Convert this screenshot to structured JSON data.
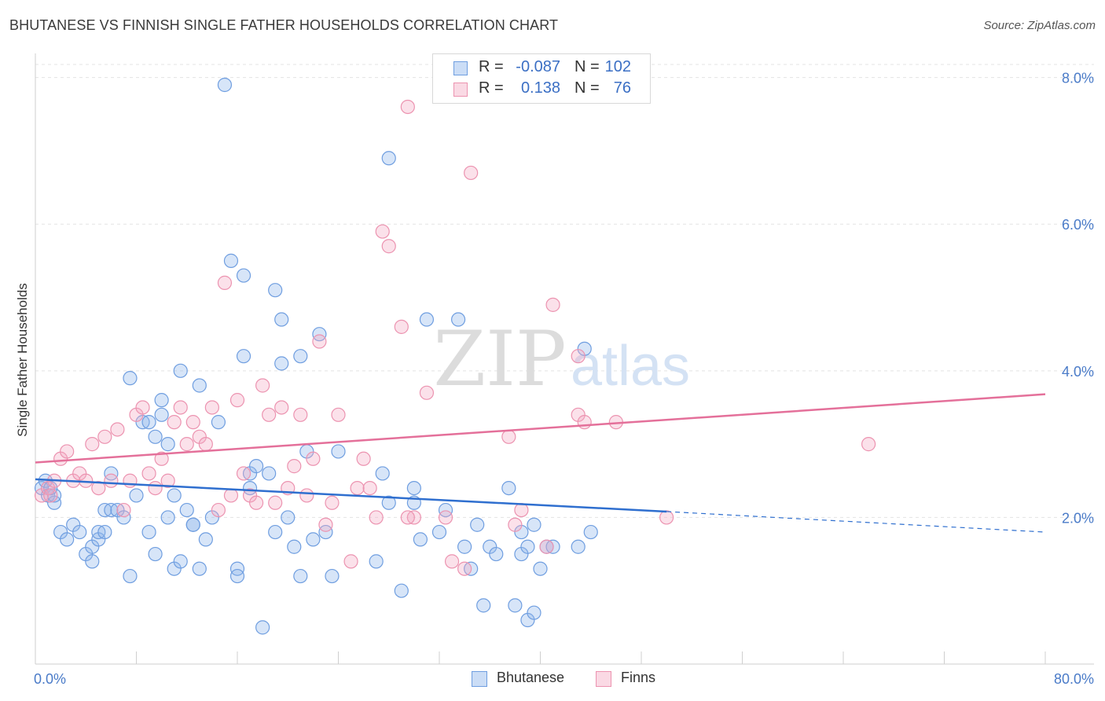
{
  "header": {
    "title": "BHUTANESE VS FINNISH SINGLE FATHER HOUSEHOLDS CORRELATION CHART",
    "source": "Source: ZipAtlas.com"
  },
  "watermark": {
    "zip": "ZIP",
    "atlas": "atlas"
  },
  "stats_legend": [
    {
      "label_r": "R =",
      "r": "-0.087",
      "label_n": "N =",
      "n": "102",
      "color": "#9bbcec"
    },
    {
      "label_r": "R =",
      "r": "0.138",
      "label_n": "N =",
      "n": "76",
      "color": "#f2a9c1"
    }
  ],
  "bottom_legend": [
    {
      "name": "Bhutanese",
      "color": "#9bbcec"
    },
    {
      "name": "Finns",
      "color": "#f2a9c1"
    }
  ],
  "colors": {
    "blue_fill": "rgba(140,180,235,0.35)",
    "blue_stroke": "#6f9ee0",
    "blue_line": "#2f6fcf",
    "pink_fill": "rgba(244,170,195,0.35)",
    "pink_stroke": "#ec93b0",
    "pink_line": "#e4709a",
    "tick_text": "#4a7bc8"
  },
  "chart_data": {
    "type": "scatter",
    "title": "BHUTANESE VS FINNISH SINGLE FATHER HOUSEHOLDS CORRELATION CHART",
    "xlabel": "",
    "ylabel": "Single Father Households",
    "xlim": [
      0,
      80
    ],
    "ylim": [
      0,
      8.2
    ],
    "x_tick_labels": [
      "0.0%",
      "80.0%"
    ],
    "y_ticks": [
      2,
      4,
      6,
      8
    ],
    "y_tick_labels": [
      "2.0%",
      "4.0%",
      "6.0%",
      "8.0%"
    ],
    "grid": true,
    "legend_position": "top-center",
    "series": [
      {
        "name": "Bhutanese",
        "trend": {
          "x": [
            0,
            50
          ],
          "y": [
            2.52,
            2.08
          ],
          "dashed_extension_to_x": 80,
          "dashed_end_y": 1.8
        },
        "points": [
          [
            0.5,
            2.4
          ],
          [
            1,
            2.3
          ],
          [
            1.5,
            2.2
          ],
          [
            1.5,
            2.3
          ],
          [
            2,
            1.8
          ],
          [
            2.5,
            1.7
          ],
          [
            3,
            1.9
          ],
          [
            3.5,
            1.8
          ],
          [
            4,
            1.5
          ],
          [
            4.5,
            1.6
          ],
          [
            4.5,
            1.4
          ],
          [
            5,
            1.7
          ],
          [
            5,
            1.8
          ],
          [
            5.5,
            2.1
          ],
          [
            5.5,
            1.8
          ],
          [
            6,
            2.6
          ],
          [
            6,
            2.1
          ],
          [
            6.5,
            2.1
          ],
          [
            7,
            2.0
          ],
          [
            7.5,
            3.9
          ],
          [
            7.5,
            1.2
          ],
          [
            8,
            2.3
          ],
          [
            8.5,
            3.3
          ],
          [
            9,
            3.3
          ],
          [
            9,
            1.8
          ],
          [
            9.5,
            3.1
          ],
          [
            9.5,
            1.5
          ],
          [
            10,
            3.6
          ],
          [
            10,
            3.4
          ],
          [
            10.5,
            2.0
          ],
          [
            10.5,
            3.0
          ],
          [
            11,
            2.3
          ],
          [
            11,
            1.3
          ],
          [
            11.5,
            1.4
          ],
          [
            11.5,
            4.0
          ],
          [
            12,
            2.1
          ],
          [
            12.5,
            1.9
          ],
          [
            12.5,
            1.9
          ],
          [
            13,
            3.8
          ],
          [
            13,
            1.3
          ],
          [
            13.5,
            1.7
          ],
          [
            14,
            2.0
          ],
          [
            14.5,
            3.3
          ],
          [
            15,
            7.9
          ],
          [
            15.5,
            5.5
          ],
          [
            16,
            1.3
          ],
          [
            16,
            1.2
          ],
          [
            16.5,
            4.2
          ],
          [
            16.5,
            5.3
          ],
          [
            17,
            2.6
          ],
          [
            17,
            2.4
          ],
          [
            17.5,
            2.7
          ],
          [
            18,
            0.5
          ],
          [
            18.5,
            2.6
          ],
          [
            19,
            5.1
          ],
          [
            19,
            1.8
          ],
          [
            19.5,
            4.7
          ],
          [
            19.5,
            4.1
          ],
          [
            20,
            2.0
          ],
          [
            20.5,
            1.6
          ],
          [
            21,
            4.2
          ],
          [
            21,
            1.2
          ],
          [
            21.5,
            2.9
          ],
          [
            22,
            1.7
          ],
          [
            22.5,
            4.5
          ],
          [
            23,
            1.8
          ],
          [
            23.5,
            1.2
          ],
          [
            24,
            2.9
          ],
          [
            27,
            1.4
          ],
          [
            27.5,
            2.6
          ],
          [
            28,
            6.9
          ],
          [
            28,
            2.2
          ],
          [
            29,
            1.0
          ],
          [
            30,
            2.4
          ],
          [
            30.5,
            1.7
          ],
          [
            31,
            4.7
          ],
          [
            32,
            1.8
          ],
          [
            32.5,
            2.1
          ],
          [
            33.5,
            4.7
          ],
          [
            34,
            1.6
          ],
          [
            34.5,
            1.3
          ],
          [
            35,
            1.9
          ],
          [
            35.5,
            0.8
          ],
          [
            36,
            1.6
          ],
          [
            36.5,
            1.5
          ],
          [
            37.5,
            2.4
          ],
          [
            38,
            0.8
          ],
          [
            38.5,
            1.5
          ],
          [
            38.5,
            1.8
          ],
          [
            39,
            1.6
          ],
          [
            39,
            0.6
          ],
          [
            39.5,
            0.7
          ],
          [
            39.5,
            1.9
          ],
          [
            40,
            1.3
          ],
          [
            40.5,
            1.6
          ],
          [
            41,
            1.6
          ],
          [
            43,
            1.6
          ],
          [
            43.5,
            4.3
          ],
          [
            44,
            1.8
          ],
          [
            30,
            2.2
          ],
          [
            0.8,
            2.5
          ],
          [
            1.2,
            2.4
          ]
        ]
      },
      {
        "name": "Finns",
        "trend": {
          "x": [
            0,
            80
          ],
          "y": [
            2.75,
            3.68
          ]
        },
        "points": [
          [
            0.5,
            2.3
          ],
          [
            1,
            2.4
          ],
          [
            1.5,
            2.5
          ],
          [
            2,
            2.8
          ],
          [
            2.5,
            2.9
          ],
          [
            3,
            2.5
          ],
          [
            3.5,
            2.6
          ],
          [
            4,
            2.5
          ],
          [
            4.5,
            3.0
          ],
          [
            5,
            2.4
          ],
          [
            5.5,
            3.1
          ],
          [
            6,
            2.5
          ],
          [
            6.5,
            3.2
          ],
          [
            7,
            2.1
          ],
          [
            7.5,
            2.5
          ],
          [
            8,
            3.4
          ],
          [
            8.5,
            3.5
          ],
          [
            9,
            2.6
          ],
          [
            9.5,
            2.4
          ],
          [
            10,
            2.8
          ],
          [
            10.5,
            2.5
          ],
          [
            11,
            3.3
          ],
          [
            11.5,
            3.5
          ],
          [
            12,
            3.0
          ],
          [
            12.5,
            3.3
          ],
          [
            13,
            3.1
          ],
          [
            13.5,
            3.0
          ],
          [
            14,
            3.5
          ],
          [
            14.5,
            2.1
          ],
          [
            15,
            5.2
          ],
          [
            15.5,
            2.3
          ],
          [
            16,
            3.6
          ],
          [
            16.5,
            2.6
          ],
          [
            17,
            2.3
          ],
          [
            17.5,
            2.2
          ],
          [
            18,
            3.8
          ],
          [
            18.5,
            3.4
          ],
          [
            19,
            2.2
          ],
          [
            19.5,
            3.5
          ],
          [
            20,
            2.4
          ],
          [
            20.5,
            2.7
          ],
          [
            21,
            3.4
          ],
          [
            21.5,
            2.3
          ],
          [
            22,
            2.8
          ],
          [
            22.5,
            4.4
          ],
          [
            23,
            1.9
          ],
          [
            23.5,
            2.2
          ],
          [
            24,
            3.4
          ],
          [
            25,
            1.4
          ],
          [
            25.5,
            2.4
          ],
          [
            26,
            2.8
          ],
          [
            26.5,
            2.4
          ],
          [
            27,
            2.0
          ],
          [
            27.5,
            5.9
          ],
          [
            28,
            5.7
          ],
          [
            29,
            4.6
          ],
          [
            29.5,
            7.6
          ],
          [
            30,
            2.0
          ],
          [
            31,
            3.7
          ],
          [
            32.5,
            2.0
          ],
          [
            33,
            1.4
          ],
          [
            34,
            1.3
          ],
          [
            34.5,
            6.7
          ],
          [
            37.5,
            3.1
          ],
          [
            38,
            1.9
          ],
          [
            38.5,
            2.1
          ],
          [
            40.5,
            1.6
          ],
          [
            41,
            4.9
          ],
          [
            43,
            4.2
          ],
          [
            43,
            3.4
          ],
          [
            43.5,
            3.3
          ],
          [
            46,
            3.3
          ],
          [
            50,
            2.0
          ],
          [
            66,
            3.0
          ],
          [
            29.5,
            2.0
          ],
          [
            1.2,
            2.3
          ]
        ]
      }
    ]
  }
}
